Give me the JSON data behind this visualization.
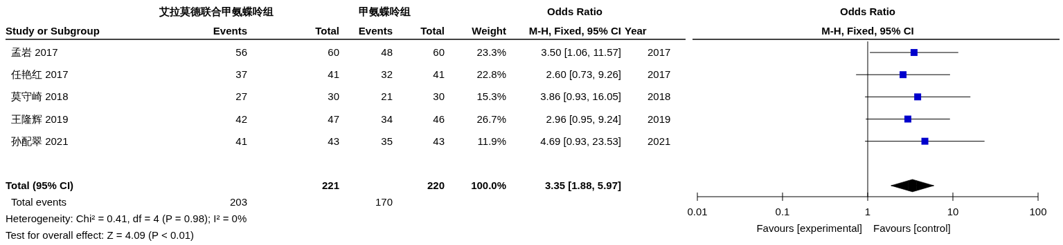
{
  "chart_data": [
    {
      "type": "other",
      "annotations": [
        "艾拉莫德联合甲氨蝶呤组",
        "甲氨蝶呤组",
        "Odds Ratio",
        "Study or Subgroup",
        "Events",
        "Total",
        "Events",
        "Total",
        "Weight",
        "M-H, Fixed, 95% CI",
        "Year",
        "孟岩 2017",
        "56",
        "60",
        "48",
        "60",
        "23.3%",
        "3.50 [1.06, 11.57]",
        "2017",
        "任艳红 2017",
        "37",
        "41",
        "32",
        "41",
        "22.8%",
        "2.60 [0.73, 9.26]",
        "2017",
        "莫守崎 2018",
        "27",
        "30",
        "21",
        "30",
        "15.3%",
        "3.86 [0.93, 16.05]",
        "2018",
        "王隆辉 2019",
        "42",
        "47",
        "34",
        "46",
        "26.7%",
        "2.96 [0.95, 9.24]",
        "2019",
        "孙配翠 2021",
        "41",
        "43",
        "35",
        "43",
        "11.9%",
        "4.69 [0.93, 23.53]",
        "2021",
        "Total (95% CI)",
        "221",
        "220",
        "100.0%",
        "3.35 [1.88, 5.97]",
        "Total events",
        "203",
        "170",
        "Heterogeneity: Chi² = 0.41, df = 4 (P = 0.98); I² = 0%",
        "Test for overall effect: Z = 4.09 (P < 0.01)"
      ]
    },
    {
      "type": "scatter",
      "title": "Odds Ratio",
      "subtitle": "M-H, Fixed, 95% CI",
      "orientation": "horizontal",
      "log": "x",
      "tick_labels": "x",
      "categories": [
        null,
        null,
        null,
        null,
        null,
        null,
        null
      ],
      "series": [
        {
          "type": "scatter",
          "marker": "square",
          "color": "#0000cc",
          "values": [
            3.5,
            2.6,
            3.86,
            2.96,
            4.69,
            null,
            null
          ],
          "errors": [
            [
              1.06,
              11.57
            ],
            [
              0.73,
              9.26
            ],
            [
              0.93,
              16.05
            ],
            [
              0.95,
              9.24
            ],
            [
              0.93,
              23.53
            ],
            null,
            null
          ]
        },
        {
          "type": "scatter",
          "marker": "diamond",
          "color": "#000000",
          "values": [
            null,
            null,
            null,
            null,
            null,
            null,
            3.35
          ],
          "errors": [
            null,
            null,
            null,
            null,
            null,
            null,
            [
              1.88,
              5.97
            ]
          ]
        }
      ],
      "xlim": [
        0.01,
        100
      ],
      "xticks": [
        0.01,
        0.1,
        1,
        10,
        100
      ],
      "ref_lines": [
        {
          "axis": "x",
          "value": 1
        }
      ],
      "annotations": [
        "Favours [experimental]",
        "Favours [control]"
      ]
    }
  ]
}
